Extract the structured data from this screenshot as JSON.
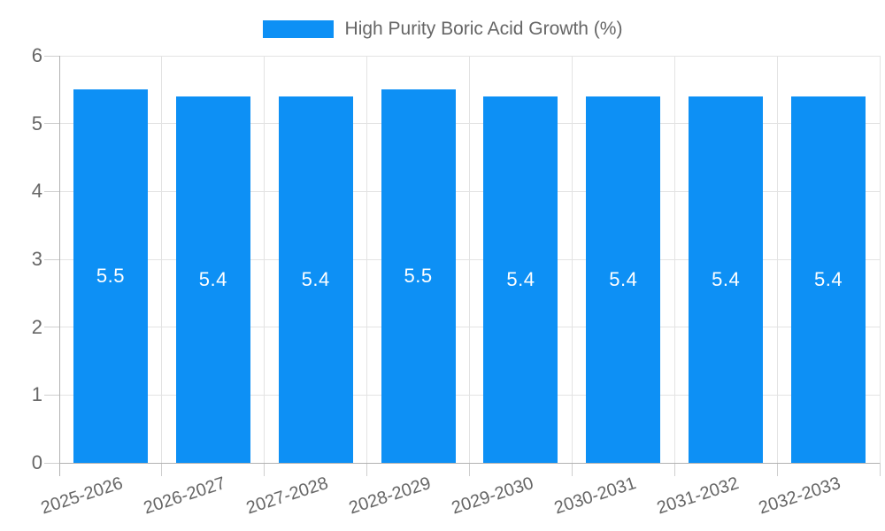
{
  "chart_data": {
    "type": "bar",
    "title": "High Purity Boric Acid Growth (%)",
    "categories": [
      "2025-2026",
      "2026-2027",
      "2027-2028",
      "2028-2029",
      "2029-2030",
      "2030-2031",
      "2031-2032",
      "2032-2033"
    ],
    "series": [
      {
        "name": "High Purity Boric Acid Growth (%)",
        "values": [
          5.5,
          5.4,
          5.4,
          5.5,
          5.4,
          5.4,
          5.4,
          5.4
        ]
      }
    ],
    "bar_labels": [
      "5.5",
      "5.4",
      "5.4",
      "5.5",
      "5.4",
      "5.4",
      "5.4",
      "5.4"
    ],
    "ylim": [
      0,
      6
    ],
    "yticks": [
      0,
      1,
      2,
      3,
      4,
      5,
      6
    ],
    "grid": true,
    "legend_position": "top",
    "xlabel": "",
    "ylabel": ""
  },
  "colors": {
    "bar": "#0d90f5",
    "grid": "#e3e3e3",
    "axis": "#b3b3b3",
    "tick": "#cfcfcf",
    "text": "#666666",
    "bar_label": "#ffffff",
    "background": "#ffffff"
  }
}
